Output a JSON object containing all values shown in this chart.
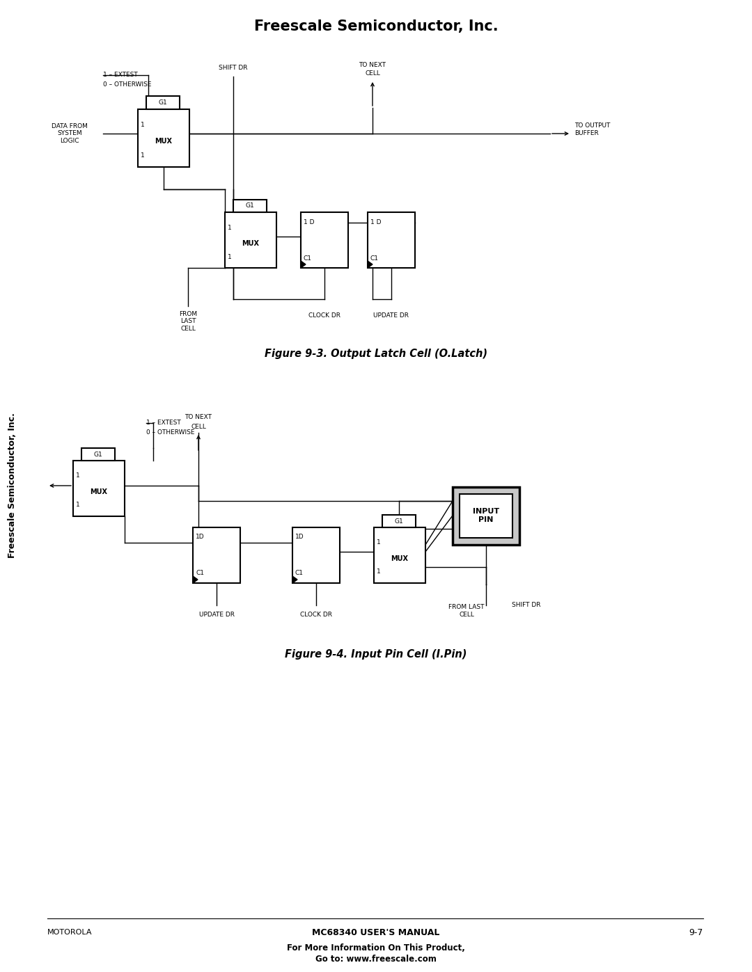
{
  "title": "Freescale Semiconductor, Inc.",
  "footer_left": "MOTOROLA",
  "footer_center": "MC68340 USER'S MANUAL",
  "footer_right": "9-7",
  "footer_bottom1": "For More Information On This Product,",
  "footer_bottom2": "Go to: www.freescale.com",
  "fig1_caption": "Figure 9-3. Output Latch Cell (O.Latch)",
  "fig2_caption": "Figure 9-4. Input Pin Cell (I.Pin)",
  "sidebar_text": "Freescale Semiconductor, Inc.",
  "bg_color": "#ffffff",
  "line_color": "#000000"
}
